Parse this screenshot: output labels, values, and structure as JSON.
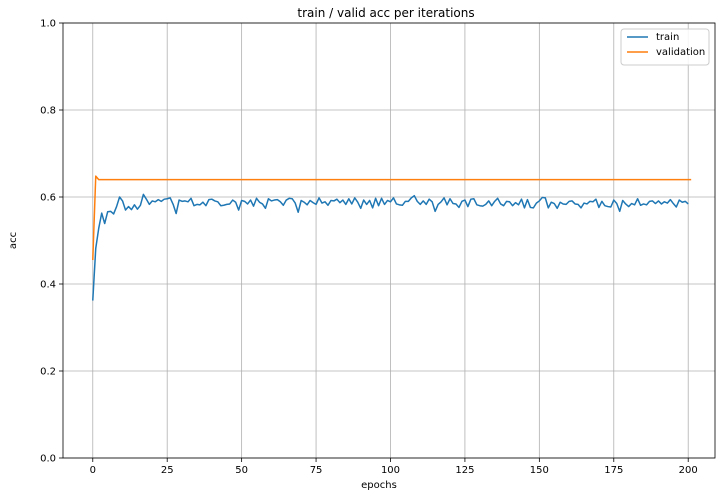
{
  "chart_data": {
    "type": "line",
    "title": "train / valid acc per iterations",
    "xlabel": "epochs",
    "ylabel": "acc",
    "xlim": [
      -10,
      209
    ],
    "ylim": [
      0.0,
      1.0
    ],
    "x_ticks": [
      0,
      25,
      50,
      75,
      100,
      125,
      150,
      175,
      200
    ],
    "y_ticks": [
      0.0,
      0.2,
      0.4,
      0.6,
      0.8,
      1.0
    ],
    "x_tick_labels": [
      "0",
      "25",
      "50",
      "75",
      "100",
      "125",
      "150",
      "175",
      "200"
    ],
    "y_tick_labels": [
      "0.0",
      "0.2",
      "0.4",
      "0.6",
      "0.8",
      "1.0"
    ],
    "grid": true,
    "legend_position": "top-right",
    "series": [
      {
        "name": "train",
        "color": "#1f77b4",
        "x_start": 0,
        "x_step": 1,
        "values": [
          0.362,
          0.482,
          0.528,
          0.563,
          0.539,
          0.566,
          0.567,
          0.561,
          0.578,
          0.6,
          0.591,
          0.57,
          0.578,
          0.571,
          0.582,
          0.572,
          0.581,
          0.606,
          0.595,
          0.583,
          0.591,
          0.589,
          0.594,
          0.59,
          0.595,
          0.596,
          0.598,
          0.583,
          0.562,
          0.593,
          0.59,
          0.591,
          0.589,
          0.597,
          0.58,
          0.583,
          0.582,
          0.588,
          0.58,
          0.594,
          0.595,
          0.591,
          0.589,
          0.58,
          0.581,
          0.583,
          0.584,
          0.593,
          0.588,
          0.57,
          0.592,
          0.59,
          0.584,
          0.593,
          0.579,
          0.597,
          0.588,
          0.584,
          0.574,
          0.596,
          0.591,
          0.593,
          0.594,
          0.589,
          0.581,
          0.593,
          0.597,
          0.596,
          0.586,
          0.565,
          0.592,
          0.588,
          0.582,
          0.592,
          0.587,
          0.583,
          0.598,
          0.586,
          0.589,
          0.581,
          0.592,
          0.591,
          0.595,
          0.587,
          0.593,
          0.583,
          0.596,
          0.584,
          0.598,
          0.588,
          0.574,
          0.593,
          0.583,
          0.592,
          0.575,
          0.597,
          0.58,
          0.597,
          0.583,
          0.592,
          0.589,
          0.598,
          0.584,
          0.582,
          0.581,
          0.59,
          0.59,
          0.598,
          0.603,
          0.59,
          0.583,
          0.591,
          0.583,
          0.595,
          0.589,
          0.567,
          0.583,
          0.589,
          0.598,
          0.582,
          0.596,
          0.585,
          0.584,
          0.576,
          0.59,
          0.593,
          0.578,
          0.595,
          0.596,
          0.582,
          0.58,
          0.579,
          0.583,
          0.591,
          0.58,
          0.59,
          0.597,
          0.584,
          0.58,
          0.59,
          0.589,
          0.58,
          0.587,
          0.582,
          0.595,
          0.575,
          0.594,
          0.576,
          0.575,
          0.586,
          0.591,
          0.599,
          0.598,
          0.575,
          0.588,
          0.585,
          0.574,
          0.588,
          0.584,
          0.583,
          0.59,
          0.591,
          0.584,
          0.583,
          0.575,
          0.586,
          0.584,
          0.59,
          0.589,
          0.595,
          0.576,
          0.59,
          0.58,
          0.578,
          0.577,
          0.593,
          0.585,
          0.567,
          0.592,
          0.584,
          0.578,
          0.585,
          0.582,
          0.596,
          0.581,
          0.584,
          0.582,
          0.59,
          0.591,
          0.585,
          0.591,
          0.584,
          0.589,
          0.586,
          0.594,
          0.585,
          0.577,
          0.593,
          0.588,
          0.59,
          0.584
        ]
      },
      {
        "name": "validation",
        "color": "#ff7f0e",
        "x_start": 0,
        "x_step": 1,
        "values": [
          0.455,
          0.648,
          0.64,
          0.64,
          0.64,
          0.64,
          0.64,
          0.64,
          0.64,
          0.64,
          0.64,
          0.64,
          0.64,
          0.64,
          0.64,
          0.64,
          0.64,
          0.64,
          0.64,
          0.64,
          0.64,
          0.64,
          0.64,
          0.64,
          0.64,
          0.64,
          0.64,
          0.64,
          0.64,
          0.64,
          0.64,
          0.64,
          0.64,
          0.64,
          0.64,
          0.64,
          0.64,
          0.64,
          0.64,
          0.64,
          0.64,
          0.64,
          0.64,
          0.64,
          0.64,
          0.64,
          0.64,
          0.64,
          0.64,
          0.64,
          0.64,
          0.64,
          0.64,
          0.64,
          0.64,
          0.64,
          0.64,
          0.64,
          0.64,
          0.64,
          0.64,
          0.64,
          0.64,
          0.64,
          0.64,
          0.64,
          0.64,
          0.64,
          0.64,
          0.64,
          0.64,
          0.64,
          0.64,
          0.64,
          0.64,
          0.64,
          0.64,
          0.64,
          0.64,
          0.64,
          0.64,
          0.64,
          0.64,
          0.64,
          0.64,
          0.64,
          0.64,
          0.64,
          0.64,
          0.64,
          0.64,
          0.64,
          0.64,
          0.64,
          0.64,
          0.64,
          0.64,
          0.64,
          0.64,
          0.64,
          0.64,
          0.64,
          0.64,
          0.64,
          0.64,
          0.64,
          0.64,
          0.64,
          0.64,
          0.64,
          0.64,
          0.64,
          0.64,
          0.64,
          0.64,
          0.64,
          0.64,
          0.64,
          0.64,
          0.64,
          0.64,
          0.64,
          0.64,
          0.64,
          0.64,
          0.64,
          0.64,
          0.64,
          0.64,
          0.64,
          0.64,
          0.64,
          0.64,
          0.64,
          0.64,
          0.64,
          0.64,
          0.64,
          0.64,
          0.64,
          0.64,
          0.64,
          0.64,
          0.64,
          0.64,
          0.64,
          0.64,
          0.64,
          0.64,
          0.64,
          0.64,
          0.64,
          0.64,
          0.64,
          0.64,
          0.64,
          0.64,
          0.64,
          0.64,
          0.64,
          0.64,
          0.64,
          0.64,
          0.64,
          0.64,
          0.64,
          0.64,
          0.64,
          0.64,
          0.64,
          0.64,
          0.64,
          0.64,
          0.64,
          0.64,
          0.64,
          0.64,
          0.64,
          0.64,
          0.64,
          0.64,
          0.64,
          0.64,
          0.64,
          0.64,
          0.64,
          0.64,
          0.64,
          0.64,
          0.64,
          0.64,
          0.64,
          0.64,
          0.64,
          0.64,
          0.64,
          0.64,
          0.64,
          0.64,
          0.64,
          0.64,
          0.64
        ]
      }
    ]
  }
}
